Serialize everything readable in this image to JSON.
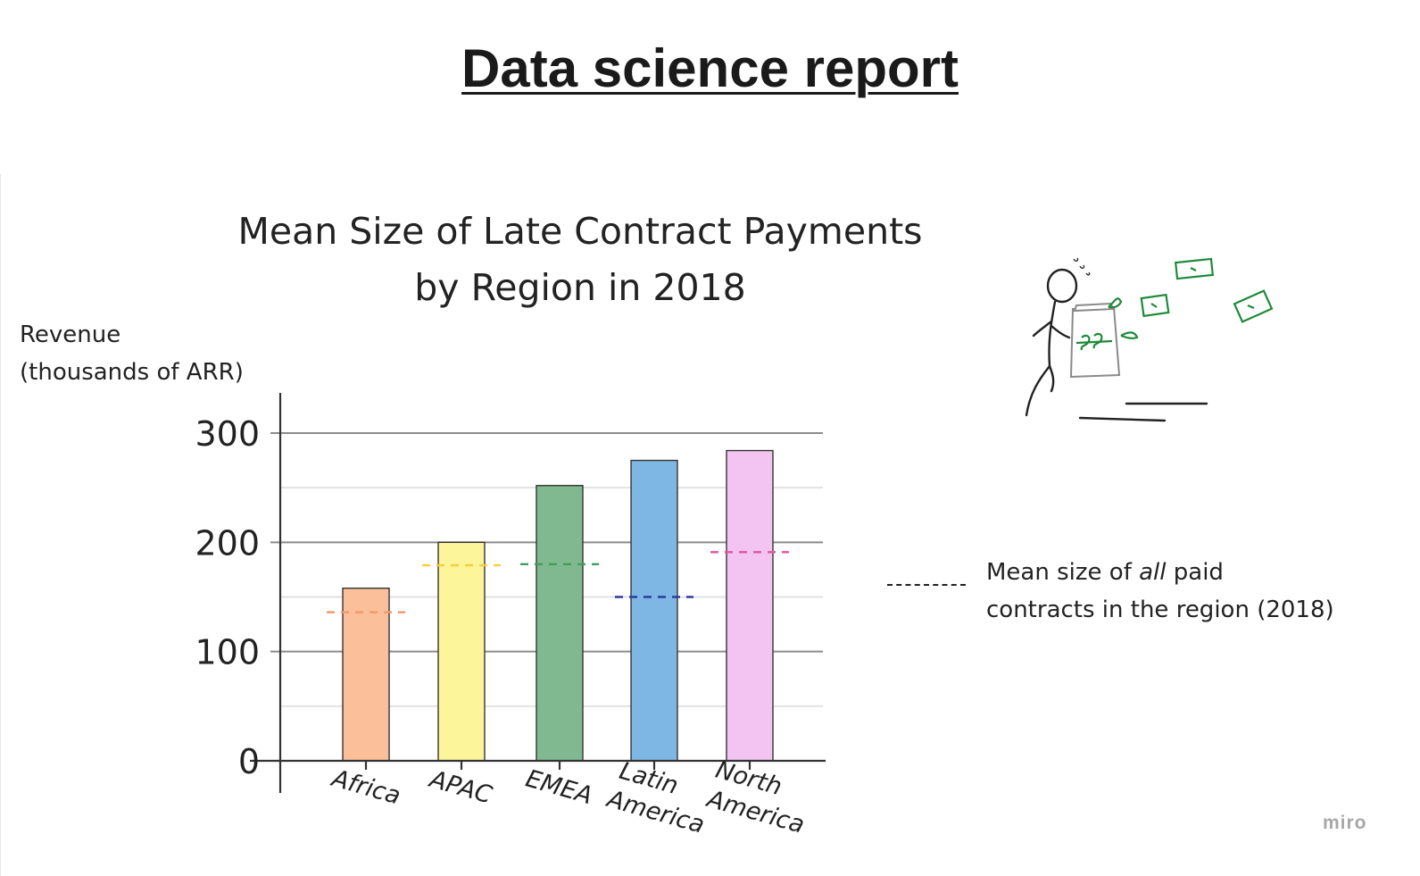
{
  "report": {
    "title": "Data science report"
  },
  "watermark": "miro",
  "legend": {
    "text_before": "Mean size of ",
    "text_emph": "all",
    "text_after": " paid",
    "text_line2": "contracts in the region (2018)"
  },
  "illustration": {
    "icon": "stick-figure-money-shredder-icon",
    "accent": "#1f8a3a"
  },
  "chart_data": {
    "type": "bar",
    "title_line1": "Mean Size of Late Contract Payments",
    "title_line2": "by Region in 2018",
    "ylabel_line1": "Revenue",
    "ylabel_line2": "(thousands of ARR)",
    "xlabel": "",
    "categories": [
      [
        "Africa"
      ],
      [
        "APAC"
      ],
      [
        "EMEA"
      ],
      [
        "Latin",
        "America"
      ],
      [
        "North",
        "America"
      ]
    ],
    "values": [
      158,
      200,
      252,
      275,
      284
    ],
    "reference_means": [
      136,
      179,
      180,
      150,
      191
    ],
    "colors": [
      "#fbbf9a",
      "#fdf59a",
      "#80b98f",
      "#7fb7e4",
      "#f3c4f2"
    ],
    "ref_colors": [
      "#f39a6a",
      "#f5cf3a",
      "#3f9e5c",
      "#2c3c9c",
      "#e2559e"
    ],
    "ylim": [
      0,
      300
    ],
    "yticks": [
      0,
      100,
      200,
      300
    ],
    "grid": true,
    "legend_position": "right"
  }
}
